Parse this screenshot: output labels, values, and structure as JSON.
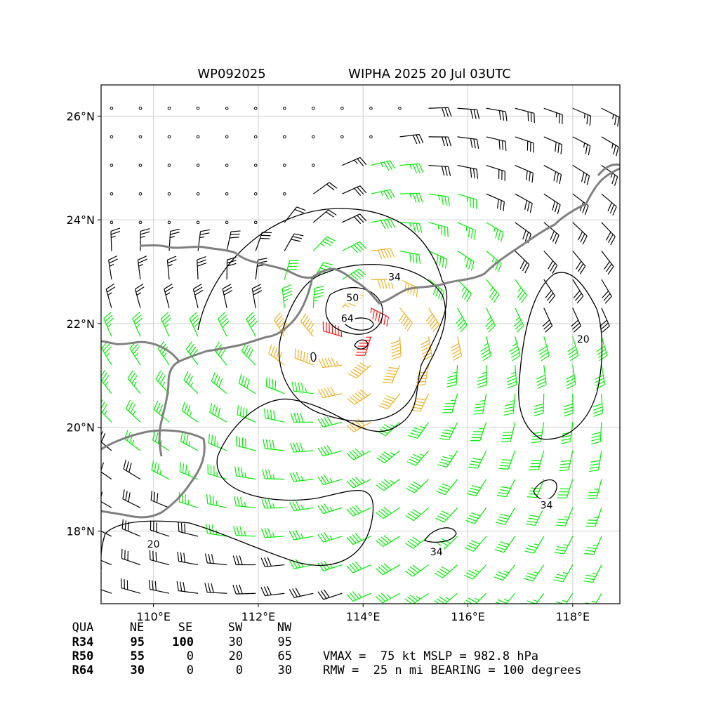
{
  "header": {
    "storm_id": "WP092025",
    "storm_title": "WIPHA 2025 20 Jul 03UTC"
  },
  "colors": {
    "below34": "#000000",
    "r34": "#00ee00",
    "r50": "#f0b020",
    "r64": "#ff1010",
    "coast": "#808080",
    "grid": "#d0d0d0",
    "contour": "#000000"
  },
  "chart_data": {
    "type": "wind-barb map",
    "xlim": [
      109.0,
      118.9
    ],
    "ylim": [
      16.6,
      26.6
    ],
    "grid": true,
    "x_ticks": [
      110,
      112,
      114,
      116,
      118
    ],
    "x_tick_labels": [
      "110°E",
      "112°E",
      "114°E",
      "116°E",
      "118°E"
    ],
    "y_ticks": [
      18,
      20,
      22,
      24,
      26
    ],
    "y_tick_labels": [
      "18°N",
      "20°N",
      "22°N",
      "24°N",
      "26°N"
    ],
    "center": {
      "lon": 113.8,
      "lat": 22.0
    },
    "contour_labels": [
      {
        "text": "20",
        "lon": 118.2,
        "lat": 21.7
      },
      {
        "text": "20",
        "lon": 110.0,
        "lat": 17.75
      },
      {
        "text": "34",
        "lon": 114.6,
        "lat": 22.9
      },
      {
        "text": "34",
        "lon": 117.5,
        "lat": 18.5
      },
      {
        "text": "34",
        "lon": 115.4,
        "lat": 17.6
      },
      {
        "text": "50",
        "lon": 113.8,
        "lat": 22.5
      },
      {
        "text": "64",
        "lon": 113.7,
        "lat": 22.1
      }
    ]
  },
  "table": {
    "headers": [
      "QUA",
      "NE",
      "SE",
      "SW",
      "NW"
    ],
    "rows": [
      {
        "label": "R34",
        "values": [
          "95",
          "100",
          "30",
          "95"
        ]
      },
      {
        "label": "R50",
        "values": [
          "55",
          "0",
          "20",
          "65"
        ]
      },
      {
        "label": "R64",
        "values": [
          "30",
          "0",
          "0",
          "30"
        ]
      }
    ]
  },
  "summary": {
    "line1": "VMAX =  75 kt MSLP = 982.8 hPa",
    "line2": "RMW =  25 n mi BEARING = 100 degrees"
  }
}
